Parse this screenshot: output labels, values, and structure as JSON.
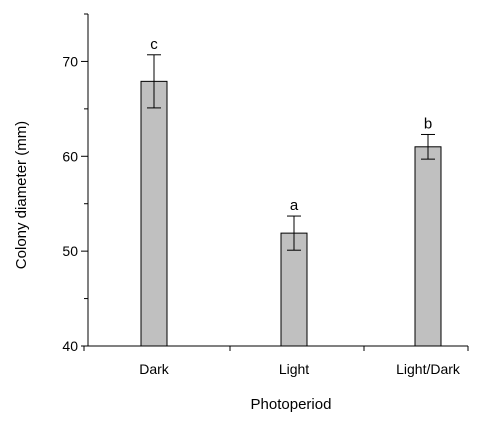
{
  "chart_data": {
    "type": "bar",
    "title": "",
    "xlabel": "Photoperiod",
    "ylabel": "Colony diameter (mm)",
    "ylim": [
      40,
      75
    ],
    "y_ticks": [
      40,
      50,
      60,
      70
    ],
    "y_tick_labels": [
      "40",
      "50",
      "60",
      "70"
    ],
    "grid": false,
    "legend": "none",
    "categories": [
      "Dark",
      "Light",
      "Light/Dark"
    ],
    "values": [
      67.9,
      51.9,
      61.0
    ],
    "errors": [
      2.8,
      1.8,
      1.3
    ],
    "letters": [
      "c",
      "a",
      "b"
    ],
    "bar_color": "#c0c0c0"
  }
}
